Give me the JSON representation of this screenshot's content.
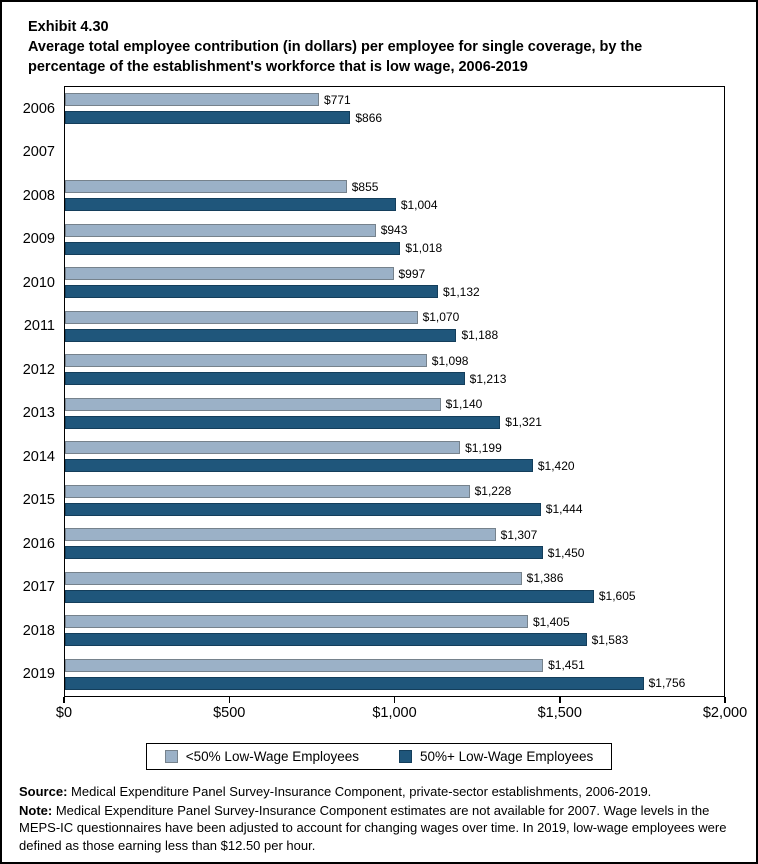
{
  "header": {
    "exhibit_label": "Exhibit 4.30",
    "title_line1": "Average total employee contribution (in dollars) per employee for single coverage, by the",
    "title_line2": "percentage of the establishment's workforce that is low wage, 2006-2019"
  },
  "colors": {
    "light_fill": "#9BB1C7",
    "light_border": "#76828C",
    "dark_fill": "#1F567B",
    "dark_border": "#143E5B"
  },
  "chart_data": {
    "type": "bar",
    "orientation": "horizontal",
    "title": "Average total employee contribution (in dollars) per employee for single coverage, by the percentage of the establishment's workforce that is low wage, 2006-2019",
    "categories": [
      "2006",
      "2007",
      "2008",
      "2009",
      "2010",
      "2011",
      "2012",
      "2013",
      "2014",
      "2015",
      "2016",
      "2017",
      "2018",
      "2019"
    ],
    "series": [
      {
        "name": "<50% Low-Wage Employees",
        "values": [
          771,
          null,
          855,
          943,
          997,
          1070,
          1098,
          1140,
          1199,
          1228,
          1307,
          1386,
          1405,
          1451
        ],
        "labels": [
          "$771",
          null,
          "$855",
          "$943",
          "$997",
          "$1,070",
          "$1,098",
          "$1,140",
          "$1,199",
          "$1,228",
          "$1,307",
          "$1,386",
          "$1,405",
          "$1,451"
        ]
      },
      {
        "name": "50%+ Low-Wage Employees",
        "values": [
          866,
          null,
          1004,
          1018,
          1132,
          1188,
          1213,
          1321,
          1420,
          1444,
          1450,
          1605,
          1583,
          1756
        ],
        "labels": [
          "$866",
          null,
          "$1,004",
          "$1,018",
          "$1,132",
          "$1,188",
          "$1,213",
          "$1,321",
          "$1,420",
          "$1,444",
          "$1,450",
          "$1,605",
          "$1,583",
          "$1,756"
        ]
      }
    ],
    "xlim": [
      0,
      2000
    ],
    "x_ticks": [
      "$0",
      "$500",
      "$1,000",
      "$1,500",
      "$2,000"
    ],
    "xlabel": "",
    "ylabel": "",
    "grid": false,
    "legend_position": "bottom",
    "note_missing_year": "2007 has no bars (estimates not available)"
  },
  "footer": {
    "source_label": "Source:",
    "source_text": "Medical Expenditure Panel Survey-Insurance Component, private-sector establishments, 2006-2019.",
    "note_label": "Note:",
    "note_text": "Medical Expenditure Panel Survey-Insurance Component estimates are not available for 2007. Wage levels in the MEPS-IC questionnaires have been adjusted to account for changing wages over time. In 2019, low-wage employees were defined as those earning less than $12.50 per hour."
  }
}
